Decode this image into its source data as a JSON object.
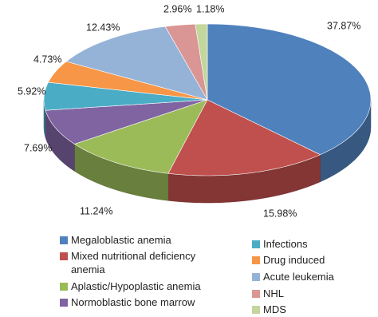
{
  "chart_data": {
    "type": "pie",
    "categories": [
      "Megaloblastic anemia",
      "Mixed nutritional deficiency anemia",
      "Aplastic/Hypoplastic anemia",
      "Normoblastic bone marrow",
      "Infections",
      "Drug induced",
      "Acute leukemia",
      "NHL",
      "MDS"
    ],
    "values": [
      37.87,
      15.98,
      11.24,
      7.69,
      5.92,
      4.73,
      12.43,
      2.96,
      1.18
    ],
    "value_labels": [
      "37.87%",
      "15.98%",
      "11.24%",
      "7.69%",
      "5.92%",
      "4.73%",
      "12.43%",
      "2.96%",
      "1.18%"
    ],
    "colors": [
      "#4f81bd",
      "#c0504d",
      "#9bbb59",
      "#8064a2",
      "#4bacc6",
      "#f79646",
      "#95b3d7",
      "#d99694",
      "#c3d69b"
    ]
  }
}
